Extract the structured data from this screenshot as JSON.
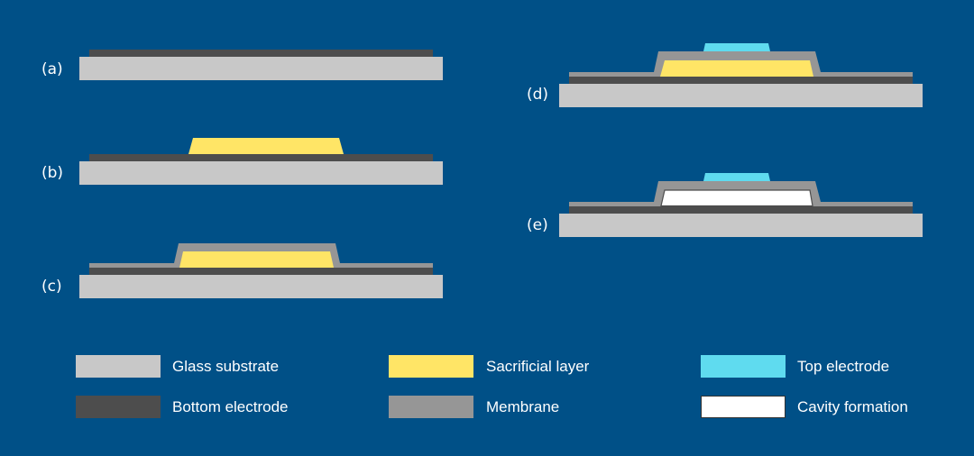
{
  "colors": {
    "background": "#005087",
    "glass_substrate": "#c8c8c8",
    "bottom_electrode": "#4d4d4d",
    "membrane": "#969696",
    "sacrificial_layer": "#ffe566",
    "top_electrode": "#5fdbef",
    "cavity": "#ffffff"
  },
  "steps": [
    {
      "label": "(a)"
    },
    {
      "label": "(b)"
    },
    {
      "label": "(c)"
    },
    {
      "label": "(d)"
    },
    {
      "label": "(e)"
    }
  ],
  "legend": [
    {
      "label": "Glass substrate",
      "color": "#c8c8c8"
    },
    {
      "label": "Bottom electrode",
      "color": "#4d4d4d"
    },
    {
      "label": "Sacrificial layer",
      "color": "#ffe566"
    },
    {
      "label": "Membrane",
      "color": "#969696"
    },
    {
      "label": "Top electrode",
      "color": "#5fdbef"
    },
    {
      "label": "Cavity formation",
      "color": "#ffffff"
    }
  ]
}
